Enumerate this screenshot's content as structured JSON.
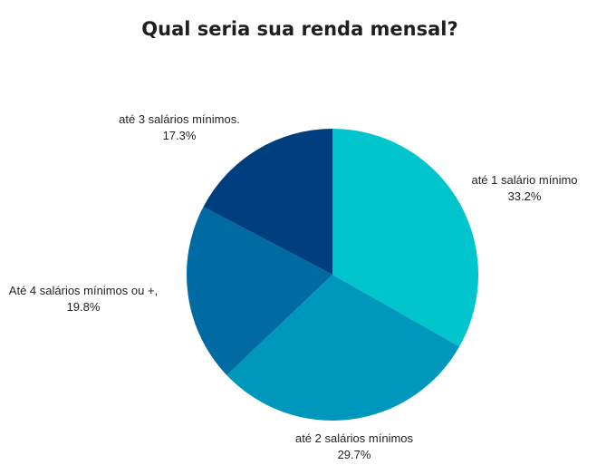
{
  "chart_data": {
    "type": "pie",
    "title": "Qual seria sua renda mensal?",
    "slices": [
      {
        "label": "até 1 salário mínimo",
        "value": 33.2,
        "display": "33.2%",
        "color": "#00c5cd"
      },
      {
        "label": "até 2 salários mínimos",
        "value": 29.7,
        "display": "29.7%",
        "color": "#0097bd"
      },
      {
        "label": "Até 4 salários mínimos ou +,",
        "value": 19.8,
        "display": "19.8%",
        "color": "#006ba2"
      },
      {
        "label": "até 3 salários mínimos.",
        "value": 17.3,
        "display": "17.3%",
        "color": "#003f7f"
      }
    ]
  }
}
